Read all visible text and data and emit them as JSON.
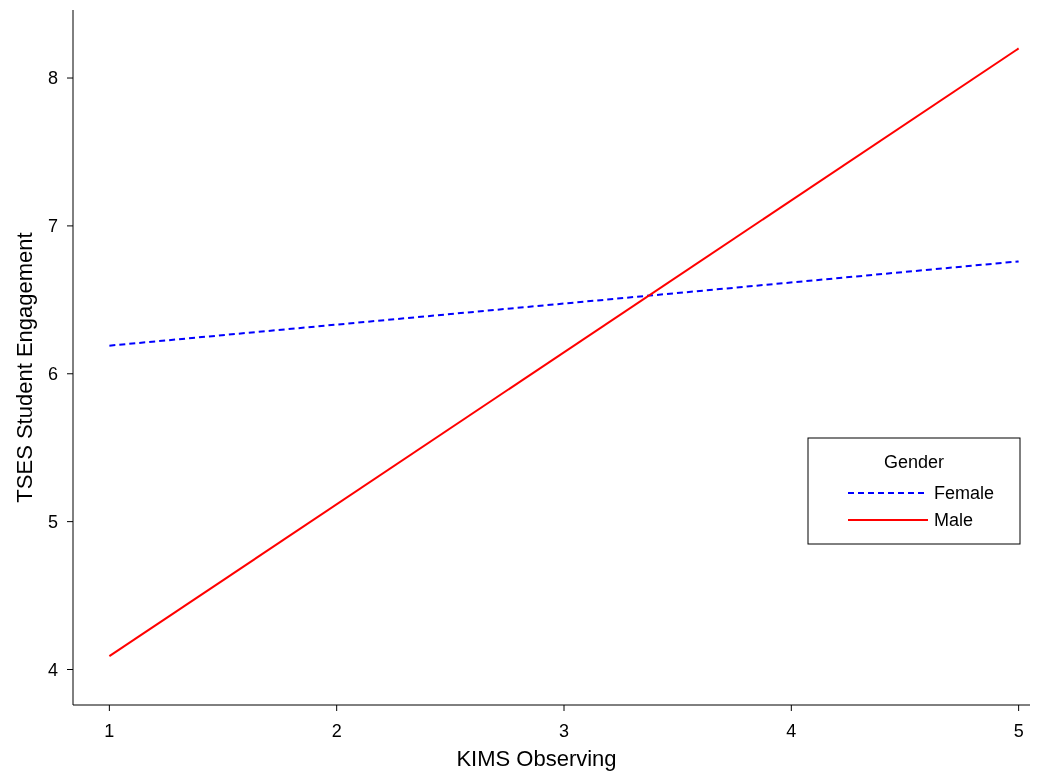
{
  "chart_data": {
    "type": "line",
    "xlabel": "KIMS Observing",
    "ylabel": "TSES Student Engagement",
    "legend_title": "Gender",
    "x": [
      1,
      5
    ],
    "series": [
      {
        "name": "Female",
        "color": "#0000ff",
        "values": [
          6.19,
          6.76
        ],
        "line_style": "dashed"
      },
      {
        "name": "Male",
        "color": "#ff0000",
        "values": [
          4.09,
          8.2
        ],
        "line_style": "solid"
      }
    ],
    "xlim": [
      0.84,
      5.05
    ],
    "ylim": [
      3.76,
      8.46
    ],
    "xticks": [
      1,
      2,
      3,
      4,
      5
    ],
    "yticks": [
      4,
      5,
      6,
      7,
      8
    ],
    "grid": false,
    "legend": "bottom right",
    "marker": "none"
  }
}
